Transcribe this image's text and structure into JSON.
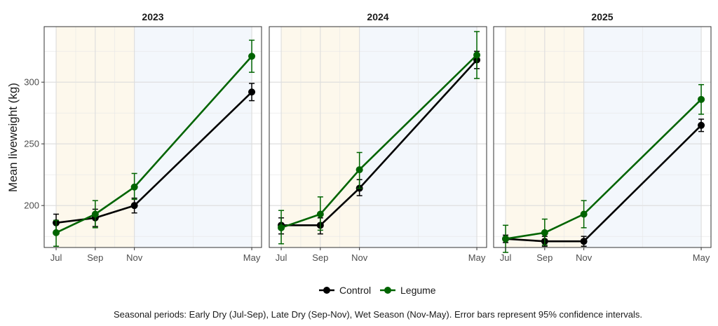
{
  "chart_data": {
    "type": "line",
    "ylabel": "Mean liveweight (kg)",
    "xlabel": "",
    "x_ticks": [
      "Jul",
      "Sep",
      "Nov",
      "May"
    ],
    "y_ticks": [
      200,
      250,
      300
    ],
    "ylim": [
      166,
      345
    ],
    "grid": true,
    "legend_position": "bottom",
    "caption": "Seasonal periods: Early Dry (Jul-Sep), Late Dry (Sep-Nov), Wet Season (Nov-May). Error bars represent 95% confidence intervals.",
    "season_bands": [
      {
        "from": "Jul",
        "to": "Nov",
        "color": "#fdf8ec"
      },
      {
        "from": "Nov",
        "to": "May",
        "color": "#f3f7fc"
      }
    ],
    "series_styles": [
      {
        "name": "Control",
        "color": "#000000"
      },
      {
        "name": "Legume",
        "color": "#006400"
      }
    ],
    "panels": [
      {
        "title": "2023",
        "series": [
          {
            "name": "Control",
            "values": [
              186,
              190,
              200,
              292
            ],
            "lower": [
              179,
              183,
              194,
              285
            ],
            "upper": [
              193,
              197,
              206,
              299
            ]
          },
          {
            "name": "Legume",
            "values": [
              178,
              193,
              215,
              321
            ],
            "lower": [
              167,
              182,
              205,
              308
            ],
            "upper": [
              188,
              204,
              226,
              334
            ]
          }
        ]
      },
      {
        "title": "2024",
        "series": [
          {
            "name": "Control",
            "values": [
              184,
              184,
              214,
              318
            ],
            "lower": [
              177,
              177,
              208,
              311
            ],
            "upper": [
              190,
              190,
              221,
              325
            ]
          },
          {
            "name": "Legume",
            "values": [
              182,
              193,
              229,
              322
            ],
            "lower": [
              169,
              180,
              214,
              303
            ],
            "upper": [
              196,
              207,
              243,
              341
            ]
          }
        ]
      },
      {
        "title": "2025",
        "series": [
          {
            "name": "Control",
            "values": [
              173,
              171,
              171,
              265
            ],
            "lower": [
              170,
              167,
              167,
              260
            ],
            "upper": [
              176,
              175,
              175,
              270
            ]
          },
          {
            "name": "Legume",
            "values": [
              173,
              178,
              193,
              286
            ],
            "lower": [
              162,
              168,
              182,
              274
            ],
            "upper": [
              184,
              189,
              204,
              298
            ]
          }
        ]
      }
    ]
  }
}
